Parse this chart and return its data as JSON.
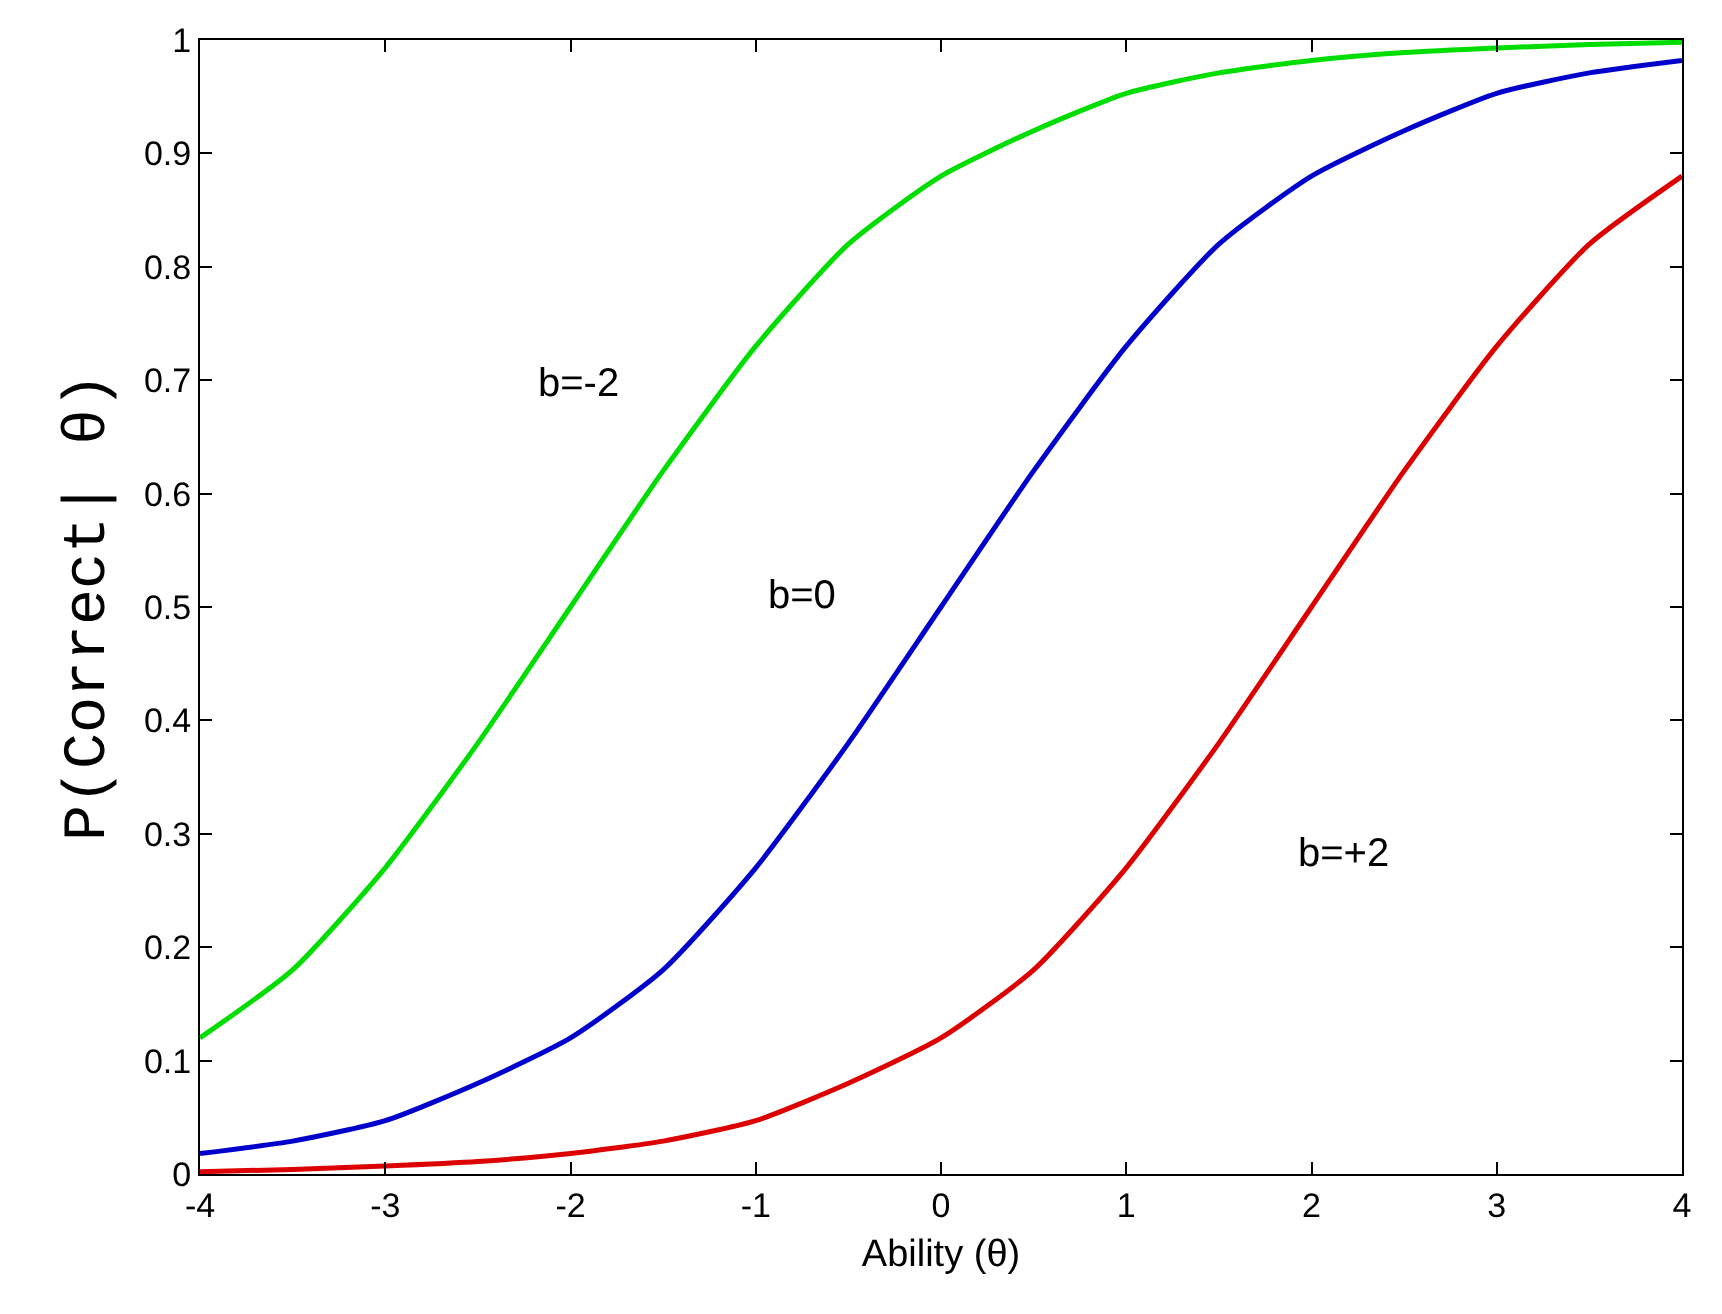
{
  "chart_data": {
    "type": "line",
    "xlabel": "Ability (θ)",
    "ylabel": "P(Correct| θ)",
    "x": [
      -4,
      -3.5,
      -3,
      -2.5,
      -2,
      -1.5,
      -1,
      -0.5,
      0,
      0.5,
      1,
      1.5,
      2,
      2.5,
      3,
      3.5,
      4
    ],
    "series": [
      {
        "color": "#00dd00",
        "values": [
          0.12,
          0.18,
          0.27,
          0.38,
          0.5,
          0.62,
          0.73,
          0.82,
          0.88,
          0.92,
          0.953,
          0.971,
          0.982,
          0.989,
          0.993,
          0.996,
          0.998
        ]
      },
      {
        "color": "#0000cc",
        "values": [
          0.018,
          0.029,
          0.047,
          0.08,
          0.12,
          0.18,
          0.27,
          0.38,
          0.5,
          0.62,
          0.73,
          0.82,
          0.88,
          0.92,
          0.953,
          0.971,
          0.982
        ]
      },
      {
        "color": "#dd0000",
        "values": [
          0.002,
          0.004,
          0.007,
          0.011,
          0.018,
          0.029,
          0.047,
          0.08,
          0.12,
          0.18,
          0.27,
          0.38,
          0.5,
          0.62,
          0.73,
          0.82,
          0.88
        ]
      }
    ],
    "xlim": [
      -4,
      4
    ],
    "xticks": [
      -4,
      -3,
      -2,
      -1,
      0,
      1,
      2,
      3,
      4
    ],
    "ylim": [
      0,
      1
    ],
    "yticks": [
      0,
      0.1,
      0.2,
      0.3,
      0.4,
      0.5,
      0.6,
      0.7,
      0.8,
      0.9,
      1
    ],
    "marker": "none",
    "line_style": "solid",
    "annotations": [
      "b=-2",
      "b=0",
      "b=+2"
    ]
  }
}
